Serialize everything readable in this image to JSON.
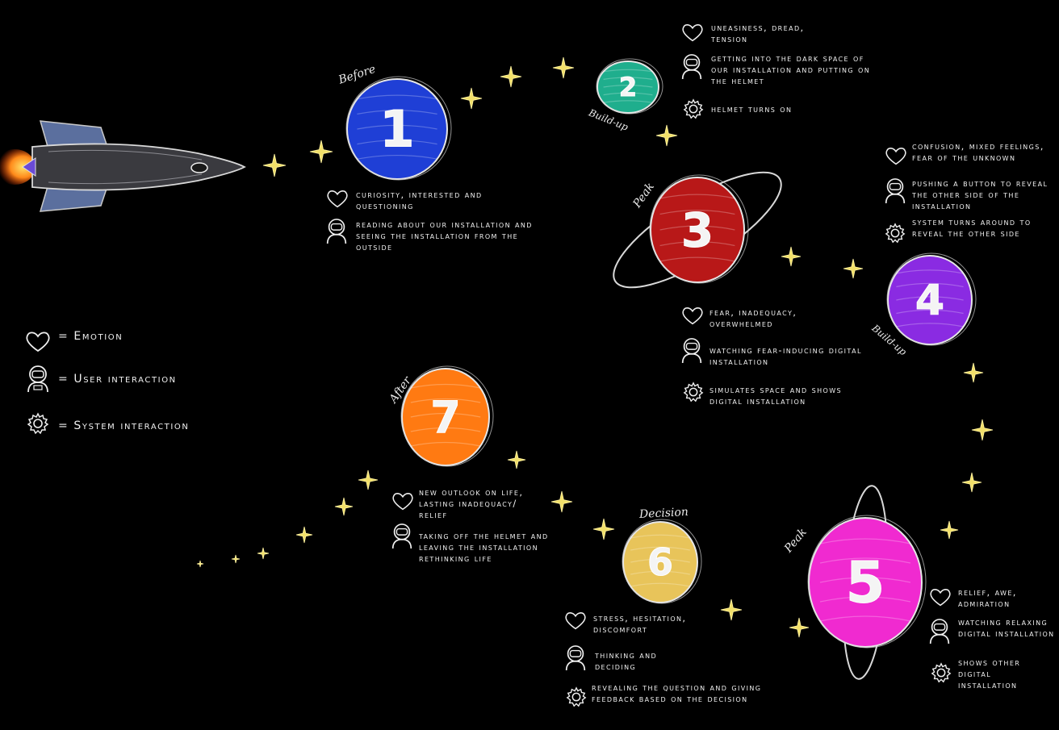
{
  "legend": {
    "emotion": "= Emotion",
    "user": "= User interaction",
    "system": "= System interaction"
  },
  "stages": [
    {
      "number": "1",
      "stage": "Before",
      "color": "#1f3fd6",
      "emotion": "Curiosity, interested and questioning",
      "user": "Reading about our installation and seeing the installation from the outside",
      "system": ""
    },
    {
      "number": "2",
      "stage": "Build-up",
      "color": "#1fae8d",
      "emotion": "Uneasiness, dread, tension",
      "user": "Getting into the dark space of our installation and putting on the helmet",
      "system": "Helmet turns on"
    },
    {
      "number": "3",
      "stage": "Peak",
      "color": "#b81818",
      "emotion": "Fear, inadequacy, overwhelmed",
      "user": "Watching fear-inducing digital installation",
      "system": "Simulates space and shows digital installation"
    },
    {
      "number": "4",
      "stage": "Build-up",
      "color": "#8a2be2",
      "emotion": "Confusion, mixed feelings, fear of the unknown",
      "user": "Pushing a button to reveal the other side of the installation",
      "system": "System turns around to reveal the other side"
    },
    {
      "number": "5",
      "stage": "Peak",
      "color": "#f02ad0",
      "emotion": "Relief, awe, admiration",
      "user": "Watching relaxing digital installation",
      "system": "Shows other digital installation"
    },
    {
      "number": "6",
      "stage": "Decision",
      "color": "#e8c45a",
      "emotion": "Stress, hesitation, discomfort",
      "user": "Thinking and deciding",
      "system": "Revealing the question and giving feedback based on the decision"
    },
    {
      "number": "7",
      "stage": "After",
      "color": "#ff7a12",
      "emotion": "New outlook on life, lasting inadequacy/ relief",
      "user": "Taking off the helmet and Leaving the installation rethinking life",
      "system": ""
    }
  ]
}
